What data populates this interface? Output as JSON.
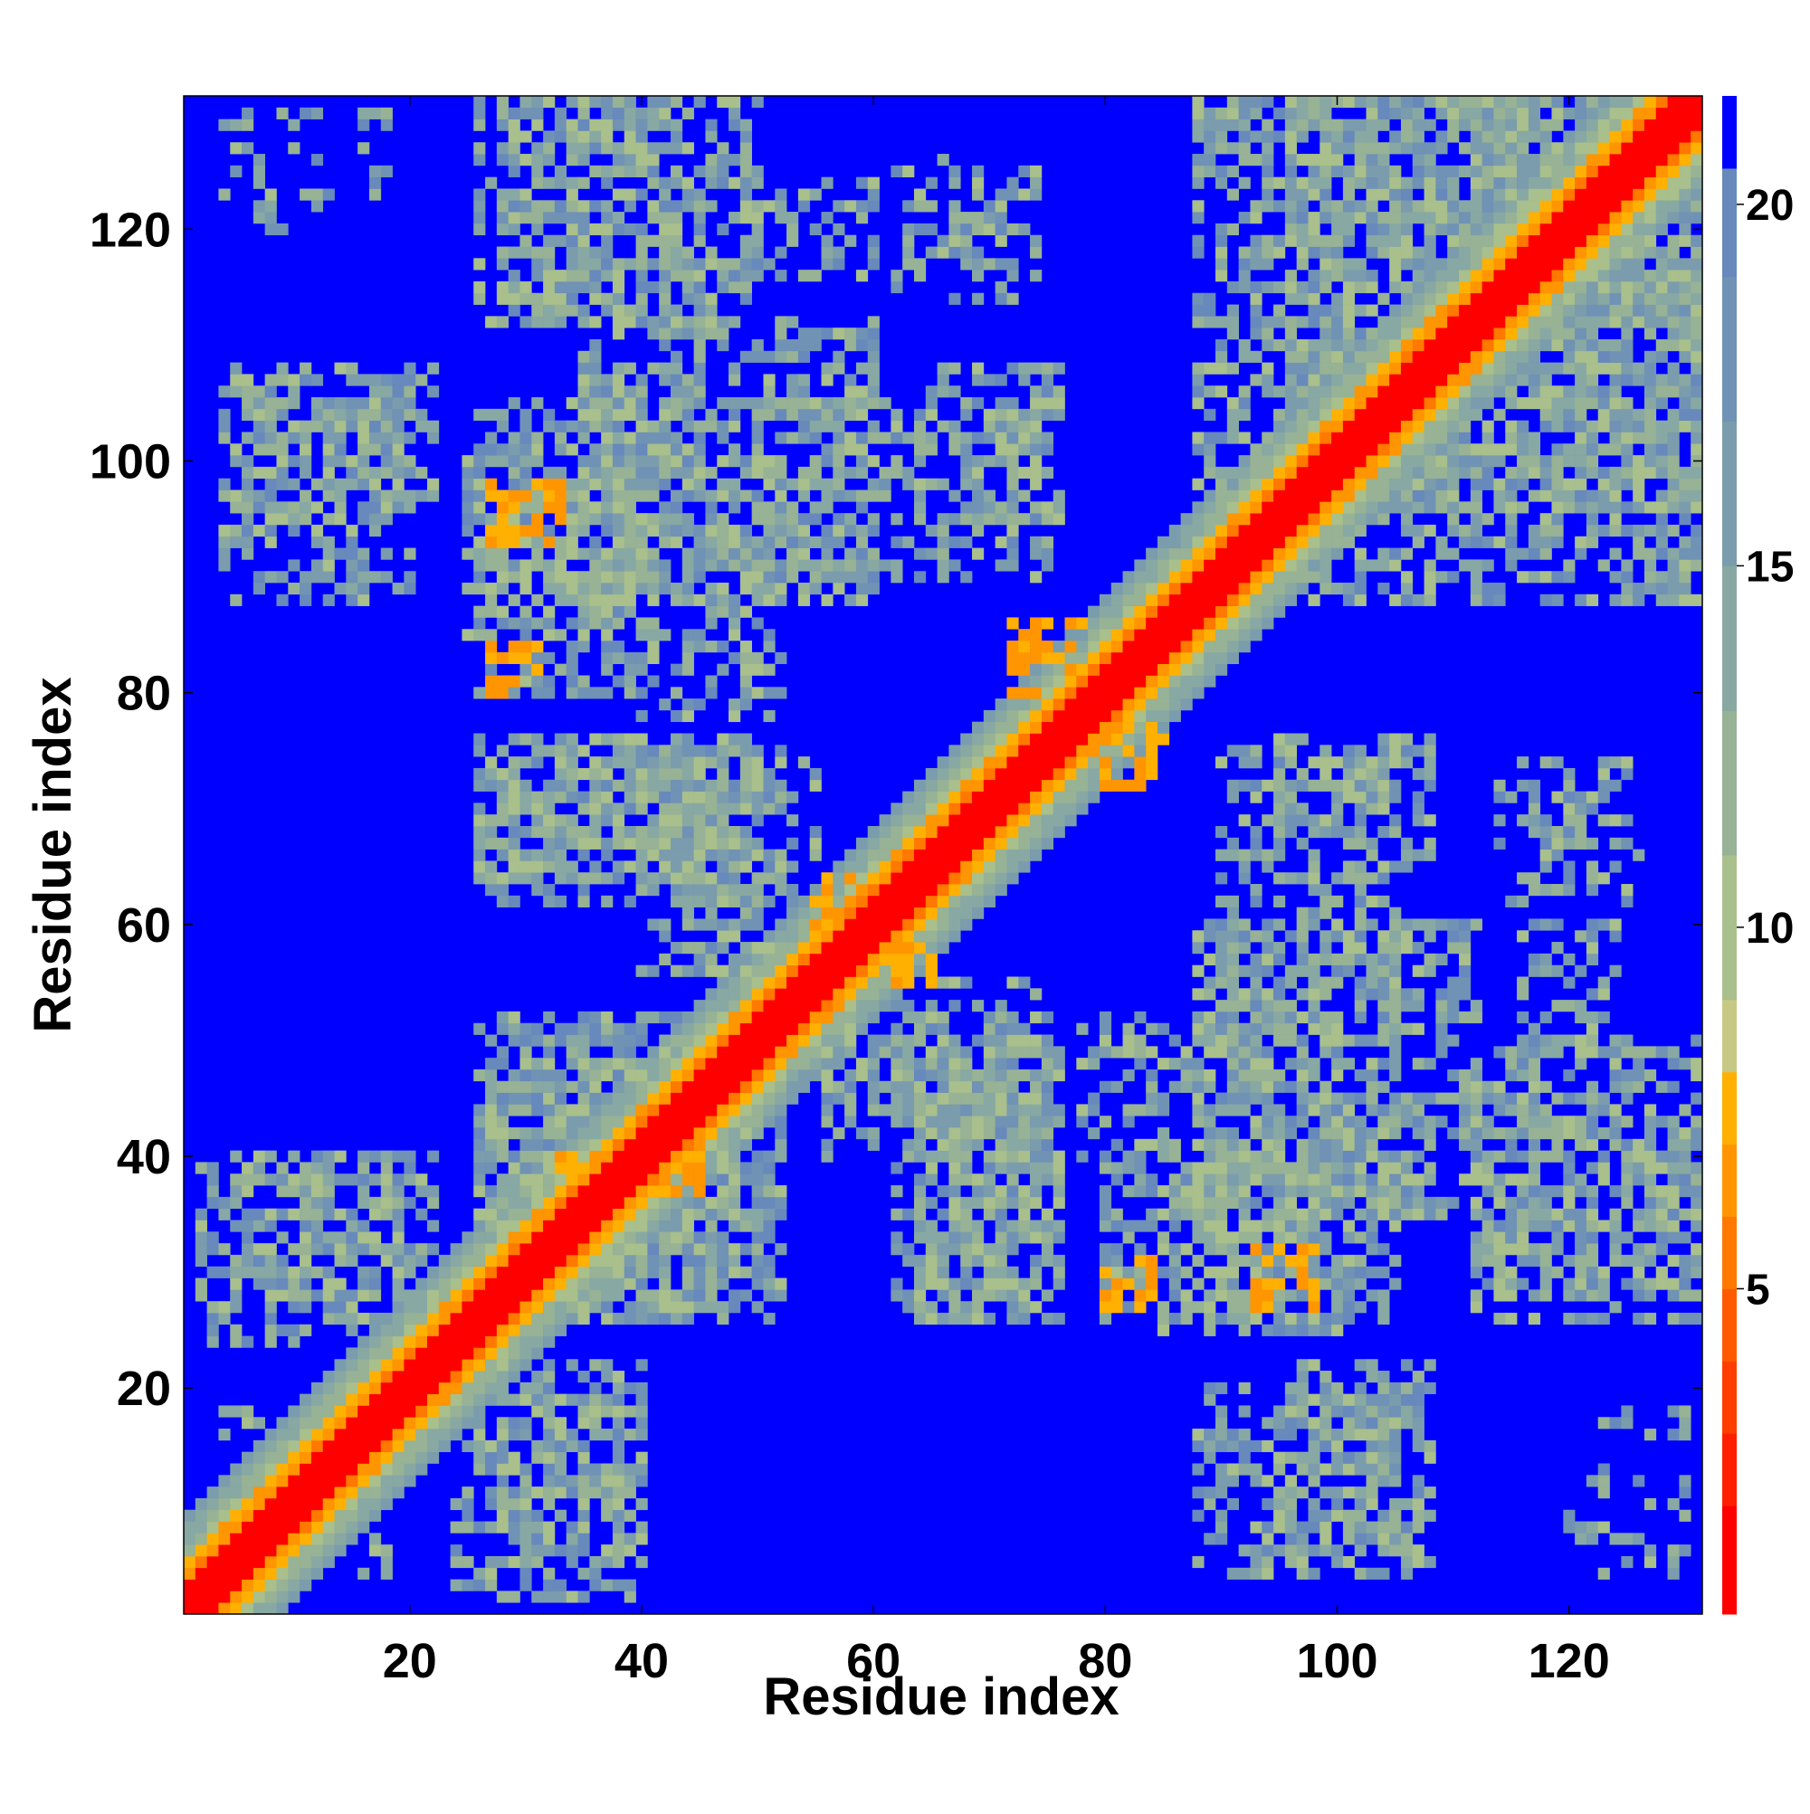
{
  "chart_data": {
    "type": "heatmap",
    "title": "",
    "xlabel": "Residue index",
    "ylabel": "Residue index",
    "n_residues": 131,
    "xlim": [
      1,
      131
    ],
    "ylim": [
      1,
      131
    ],
    "x_ticks": [
      20,
      40,
      60,
      80,
      100,
      120
    ],
    "y_ticks": [
      20,
      40,
      60,
      80,
      100,
      120
    ],
    "x_tick_labels": [
      "20",
      "40",
      "60",
      "80",
      "100",
      "120"
    ],
    "y_tick_labels": [
      "20",
      "40",
      "60",
      "80",
      "100",
      "120"
    ],
    "value_description": "pairwise residue distance map; values above 20 shown as blue background",
    "background_value": 21,
    "colorbar": {
      "range": [
        0.5,
        21.5
      ],
      "ticks": [
        5,
        10,
        15,
        20
      ],
      "tick_labels": [
        "5",
        "10",
        "15",
        "20"
      ],
      "levels": [
        {
          "max": 2,
          "color": "#ff0000"
        },
        {
          "max": 3,
          "color": "#ff1f00"
        },
        {
          "max": 4,
          "color": "#ff3d00"
        },
        {
          "max": 5,
          "color": "#ff5a00"
        },
        {
          "max": 6,
          "color": "#ff7800"
        },
        {
          "max": 7,
          "color": "#ff9500"
        },
        {
          "max": 8,
          "color": "#ffb000"
        },
        {
          "max": 9,
          "color": "#c8c885"
        },
        {
          "max": 11,
          "color": "#a9bf8c"
        },
        {
          "max": 13,
          "color": "#97b295"
        },
        {
          "max": 15,
          "color": "#88a8a3"
        },
        {
          "max": 17,
          "color": "#7b9cac"
        },
        {
          "max": 19,
          "color": "#7092b4"
        },
        {
          "max": 20.5,
          "color": "#6789bb"
        },
        {
          "max": 99,
          "color": "#0000ff"
        }
      ]
    },
    "diagonal_band": {
      "core_max_offset": 2,
      "orange_max_offset": 4,
      "pale_max_offset": 8
    },
    "contact_clusters": [
      {
        "x": [
          27,
          33
        ],
        "y": [
          93,
          98
        ],
        "value": 6
      },
      {
        "x": [
          27,
          31
        ],
        "y": [
          80,
          84
        ],
        "value": 6
      },
      {
        "x": [
          72,
          78
        ],
        "y": [
          80,
          86
        ],
        "value": 6
      },
      {
        "x": [
          80,
          85
        ],
        "y": [
          72,
          77
        ],
        "value": 6
      },
      {
        "x": [
          93,
          98
        ],
        "y": [
          27,
          32
        ],
        "value": 6
      },
      {
        "x": [
          80,
          84
        ],
        "y": [
          27,
          31
        ],
        "value": 6
      },
      {
        "x": [
          55,
          58
        ],
        "y": [
          58,
          64
        ],
        "value": 6
      },
      {
        "x": [
          60,
          65
        ],
        "y": [
          55,
          58
        ],
        "value": 6
      },
      {
        "x": [
          33,
          37
        ],
        "y": [
          34,
          40
        ],
        "value": 6
      },
      {
        "x": [
          40,
          45
        ],
        "y": [
          37,
          44
        ],
        "value": 6
      }
    ],
    "mid_regions": [
      {
        "x": [
          27,
          52
        ],
        "y": [
          26,
          48
        ],
        "density": 0.65
      },
      {
        "x": [
          26,
          50
        ],
        "y": [
          62,
          75
        ],
        "density": 0.55
      },
      {
        "x": [
          25,
          40
        ],
        "y": [
          85,
          100
        ],
        "density": 0.5
      },
      {
        "x": [
          35,
          60
        ],
        "y": [
          88,
          112
        ],
        "density": 0.5
      },
      {
        "x": [
          28,
          45
        ],
        "y": [
          112,
          131
        ],
        "density": 0.45
      },
      {
        "x": [
          50,
          60
        ],
        "y": [
          116,
          124
        ],
        "density": 0.4
      },
      {
        "x": [
          5,
          22
        ],
        "y": [
          95,
          108
        ],
        "density": 0.4
      },
      {
        "x": [
          5,
          20
        ],
        "y": [
          28,
          40
        ],
        "density": 0.45
      },
      {
        "x": [
          4,
          12
        ],
        "y": [
          8,
          18
        ],
        "density": 0.35
      },
      {
        "x": [
          24,
          40
        ],
        "y": [
          2,
          22
        ],
        "density": 0.4
      },
      {
        "x": [
          65,
          76
        ],
        "y": [
          95,
          108
        ],
        "density": 0.5
      },
      {
        "x": [
          64,
          76
        ],
        "y": [
          26,
          50
        ],
        "density": 0.55
      },
      {
        "x": [
          56,
          75
        ],
        "y": [
          40,
          55
        ],
        "density": 0.5
      },
      {
        "x": [
          80,
          105
        ],
        "y": [
          26,
          40
        ],
        "density": 0.55
      },
      {
        "x": [
          78,
          100
        ],
        "y": [
          40,
          52
        ],
        "density": 0.45
      },
      {
        "x": [
          90,
          105
        ],
        "y": [
          50,
          75
        ],
        "density": 0.45
      },
      {
        "x": [
          88,
          107
        ],
        "y": [
          4,
          20
        ],
        "density": 0.5
      },
      {
        "x": [
          96,
          131
        ],
        "y": [
          88,
          131
        ],
        "density": 0.55
      },
      {
        "x": [
          112,
          131
        ],
        "y": [
          26,
          50
        ],
        "density": 0.5
      },
      {
        "x": [
          114,
          126
        ],
        "y": [
          62,
          74
        ],
        "density": 0.3
      },
      {
        "x": [
          120,
          130
        ],
        "y": [
          4,
          18
        ],
        "density": 0.2
      },
      {
        "x": [
          64,
          72
        ],
        "y": [
          116,
          124
        ],
        "density": 0.35
      },
      {
        "x": [
          98,
          108
        ],
        "y": [
          35,
          45
        ],
        "density": 0.4
      }
    ]
  }
}
